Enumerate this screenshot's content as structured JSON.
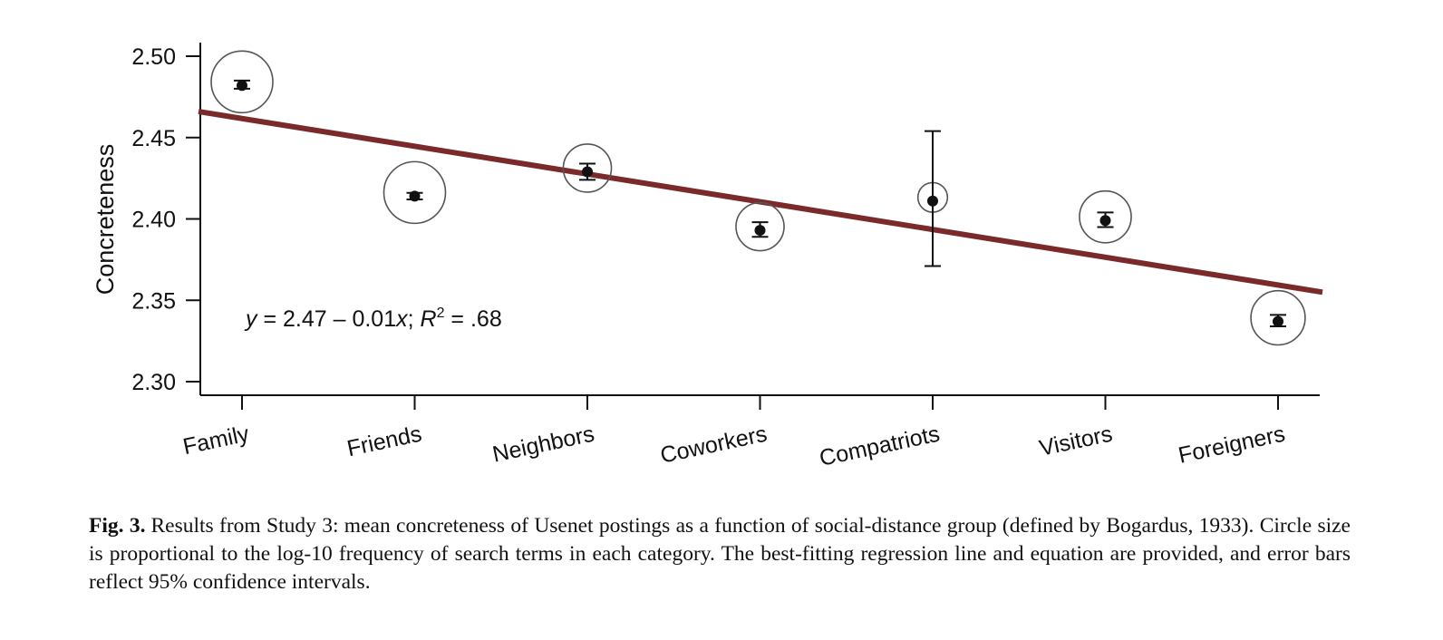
{
  "chart_data": {
    "type": "scatter",
    "ylabel": "Concreteness",
    "xlabel": "",
    "ylim": [
      2.3,
      2.5
    ],
    "yticks": [
      2.3,
      2.35,
      2.4,
      2.45,
      2.5
    ],
    "ytick_labels": [
      "2.30",
      "2.35",
      "2.40",
      "2.45",
      "2.50"
    ],
    "categories": [
      "Family",
      "Friends",
      "Neighbors",
      "Coworkers",
      "Compatriots",
      "Visitors",
      "Foreigners"
    ],
    "means": [
      2.482,
      2.414,
      2.429,
      2.393,
      2.411,
      2.399,
      2.337
    ],
    "ci_low": [
      2.48,
      2.412,
      2.424,
      2.389,
      2.371,
      2.395,
      2.334
    ],
    "ci_high": [
      2.485,
      2.416,
      2.434,
      2.398,
      2.454,
      2.404,
      2.341
    ],
    "log10_frequency_relative": [
      1.0,
      1.0,
      0.78,
      0.78,
      0.48,
      0.84,
      0.88
    ],
    "regression": {
      "intercept": 2.47,
      "slope": -0.01,
      "line_start_y": 2.466,
      "line_end_y": 2.355,
      "color": "#7a2a2a"
    },
    "equation": {
      "y": "y",
      "rhs": " = 2.47 – 0.01",
      "x": "x",
      "sep": "; ",
      "R": "R",
      "sup": "2",
      "value": " = .68"
    }
  },
  "caption": {
    "label": "Fig. 3.",
    "text": "Results from Study 3: mean concreteness of Usenet postings as a function of social-distance group (defined by Bogardus, 1933). Circle size is proportional to the log-10 frequency of search terms in each category. The best-fitting regression line and equation are provided, and error bars reflect 95% confidence intervals."
  }
}
